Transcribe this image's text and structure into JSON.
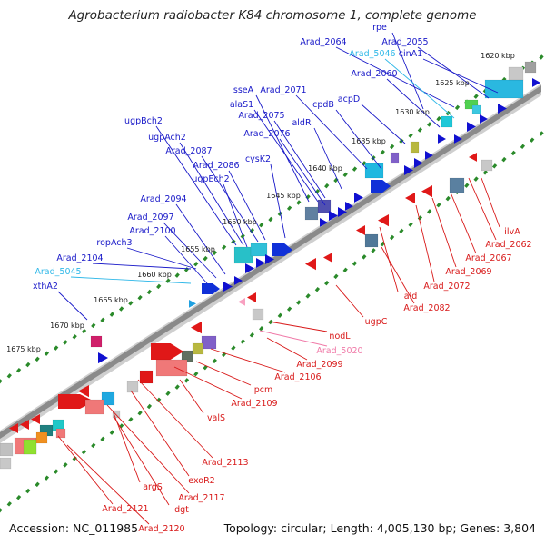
{
  "title": "Agrobacterium radiobacter K84 chromosome 1, complete genome",
  "accession": "Accession: NC_011985",
  "summary": "Topology: circular; Length: 4,005,130 bp; Genes: 3,804",
  "colors": {
    "forward_label": "#1818c8",
    "reverse_label": "#d81818",
    "rna_forward_label": "#30b8e8",
    "rna_reverse_label": "#f07aa8",
    "tick_dots": "#2a8a2a",
    "backbone": "#8a8a8a"
  },
  "scale_labels": [
    "1620 kbp",
    "1625 kbp",
    "1630 kbp",
    "1635 kbp",
    "1640 kbp",
    "1645 kbp",
    "1650 kbp",
    "1655 kbp",
    "1660 kbp",
    "1665 kbp",
    "1670 kbp",
    "1675 kbp"
  ],
  "forward_genes": [
    "rpe",
    "Arad_2064",
    "Arad_2055",
    "Arad_5046",
    "cinA1",
    "Arad_2060",
    "Arad_2071",
    "sseA",
    "alaS1",
    "Arad_2075",
    "cpdB",
    "acpD",
    "aldR",
    "Arad_2076",
    "ugpBch2",
    "ugpAch2",
    "Arad_2087",
    "Arad_2086",
    "cysK2",
    "ugpEch2",
    "Arad_2094",
    "Arad_2097",
    "Arad_2100",
    "ropAch3",
    "Arad_2104",
    "Arad_5045",
    "xthA2"
  ],
  "reverse_genes": [
    "ilvA",
    "Arad_2062",
    "Arad_2067",
    "Arad_2069",
    "Arad_2072",
    "ald",
    "Arad_2082",
    "ugpC",
    "nodL",
    "Arad_5020",
    "Arad_2099",
    "Arad_2106",
    "pcm",
    "Arad_2109",
    "valS",
    "Arad_2113",
    "exoR2",
    "Arad_2117",
    "argS",
    "dgt",
    "Arad_2121",
    "Arad_2120"
  ]
}
